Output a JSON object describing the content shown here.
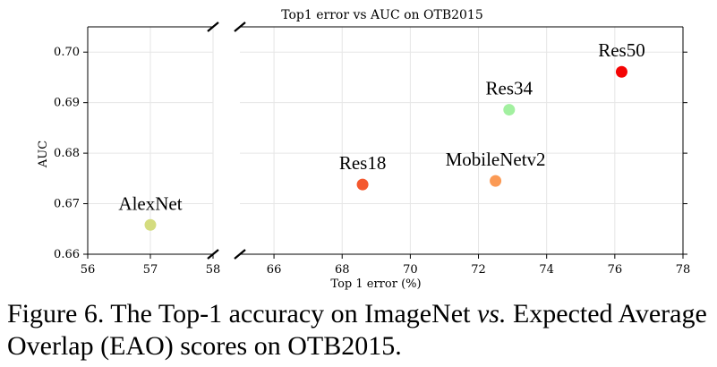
{
  "chart_data": {
    "type": "scatter",
    "title": "Top1 error vs AUC on OTB2015",
    "xlabel": "Top 1 error (%)",
    "ylabel": "AUC",
    "ylim": [
      0.66,
      0.705
    ],
    "x_segments": [
      {
        "xlim": [
          56,
          58
        ],
        "ticks": [
          56,
          57,
          58
        ]
      },
      {
        "xlim": [
          65,
          78
        ],
        "ticks": [
          66,
          68,
          70,
          72,
          74,
          76,
          78
        ]
      }
    ],
    "y_ticks": [
      0.66,
      0.67,
      0.68,
      0.69,
      0.7
    ],
    "grid": true,
    "broken_x_axis": true,
    "points": [
      {
        "label": "AlexNet",
        "x": 57.0,
        "y": 0.6658,
        "color": "#d4dc7f"
      },
      {
        "label": "Res18",
        "x": 68.6,
        "y": 0.6738,
        "color": "#f4582e"
      },
      {
        "label": "MobileNetv2",
        "x": 72.5,
        "y": 0.6745,
        "color": "#fb9a55"
      },
      {
        "label": "Res34",
        "x": 72.9,
        "y": 0.6886,
        "color": "#a2f0a0"
      },
      {
        "label": "Res50",
        "x": 76.2,
        "y": 0.6961,
        "color": "#f40404"
      }
    ]
  },
  "caption": {
    "prefix": "Figure 6. The Top-1 accuracy on ImageNet ",
    "emphasis": "vs.",
    "suffix": " Expected Average Overlap (EAO) scores on OTB2015."
  }
}
